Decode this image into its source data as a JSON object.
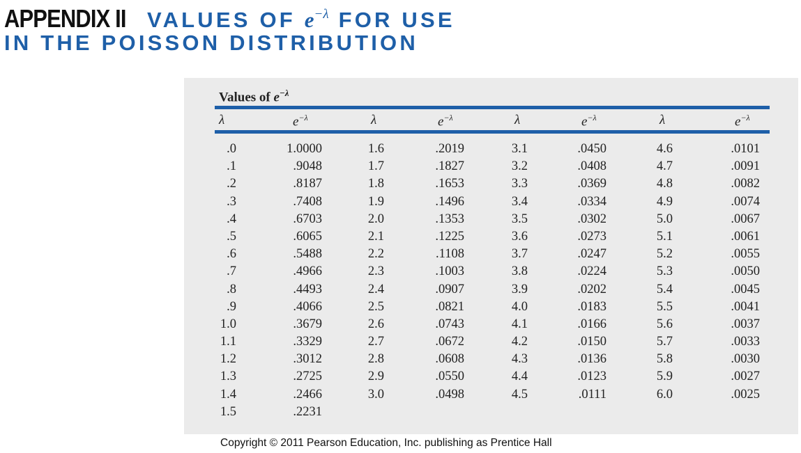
{
  "heading": {
    "appendix": "APPENDIX II",
    "line1_prefix": "VALUES OF",
    "e": "e",
    "exponent": "−λ",
    "line1_suffix": "FOR USE",
    "line2": "IN THE POISSON DISTRIBUTION"
  },
  "table": {
    "title_prefix": "Values of",
    "title_e": "e",
    "title_exponent": "−λ",
    "headers": [
      "λ",
      "e",
      "λ",
      "e",
      "λ",
      "e",
      "λ",
      "e"
    ],
    "header_exponent": "−λ",
    "columns": [
      {
        "lambda": [
          ".0",
          ".1",
          ".2",
          ".3",
          ".4",
          ".5",
          ".6",
          ".7",
          ".8",
          ".9",
          "1.0",
          "1.1",
          "1.2",
          "1.3",
          "1.4",
          "1.5"
        ],
        "value": [
          "1.0000",
          ".9048",
          ".8187",
          ".7408",
          ".6703",
          ".6065",
          ".5488",
          ".4966",
          ".4493",
          ".4066",
          ".3679",
          ".3329",
          ".3012",
          ".2725",
          ".2466",
          ".2231"
        ]
      },
      {
        "lambda": [
          "1.6",
          "1.7",
          "1.8",
          "1.9",
          "2.0",
          "2.1",
          "2.2",
          "2.3",
          "2.4",
          "2.5",
          "2.6",
          "2.7",
          "2.8",
          "2.9",
          "3.0"
        ],
        "value": [
          ".2019",
          ".1827",
          ".1653",
          ".1496",
          ".1353",
          ".1225",
          ".1108",
          ".1003",
          ".0907",
          ".0821",
          ".0743",
          ".0672",
          ".0608",
          ".0550",
          ".0498"
        ]
      },
      {
        "lambda": [
          "3.1",
          "3.2",
          "3.3",
          "3.4",
          "3.5",
          "3.6",
          "3.7",
          "3.8",
          "3.9",
          "4.0",
          "4.1",
          "4.2",
          "4.3",
          "4.4",
          "4.5"
        ],
        "value": [
          ".0450",
          ".0408",
          ".0369",
          ".0334",
          ".0302",
          ".0273",
          ".0247",
          ".0224",
          ".0202",
          ".0183",
          ".0166",
          ".0150",
          ".0136",
          ".0123",
          ".0111"
        ]
      },
      {
        "lambda": [
          "4.6",
          "4.7",
          "4.8",
          "4.9",
          "5.0",
          "5.1",
          "5.2",
          "5.3",
          "5.4",
          "5.5",
          "5.6",
          "5.7",
          "5.8",
          "5.9",
          "6.0"
        ],
        "value": [
          ".0101",
          ".0091",
          ".0082",
          ".0074",
          ".0067",
          ".0061",
          ".0055",
          ".0050",
          ".0045",
          ".0041",
          ".0037",
          ".0033",
          ".0030",
          ".0027",
          ".0025"
        ]
      }
    ]
  },
  "colors": {
    "accent": "#1e5fa8",
    "panel": "#ebebeb"
  },
  "copyright": "Copyright © 2011 Pearson Education, Inc. publishing as Prentice Hall"
}
